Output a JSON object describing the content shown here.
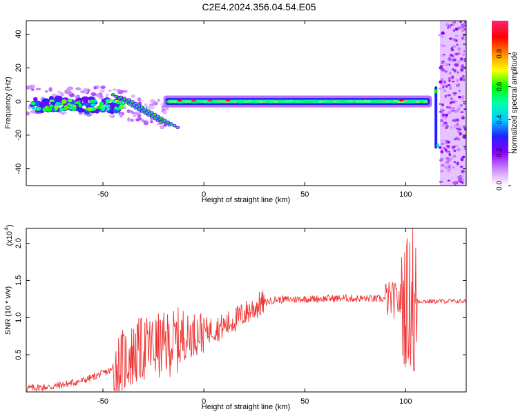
{
  "title": "C2E4.2024.356.04.54.E05",
  "chart_data": [
    {
      "type": "heatmap",
      "xlabel": "Height of straight line (km)",
      "ylabel": "Frequency (Hz)",
      "xlim": [
        -88,
        130
      ],
      "ylim": [
        -50,
        48
      ],
      "xticks": [
        -50,
        0,
        50,
        100
      ],
      "yticks": [
        -40,
        -20,
        0,
        20,
        40
      ],
      "colorbar": {
        "label": "Normalized spectral amplitude",
        "range": [
          0,
          1
        ],
        "ticks": [
          "0.0",
          "0.2",
          "0.4",
          "0.6",
          "0.8"
        ],
        "tick_values": [
          0,
          0.2,
          0.4,
          0.6,
          0.8
        ],
        "colors": [
          "#ffffff",
          "#cc88ff",
          "#8800ff",
          "#2222ff",
          "#00ccff",
          "#00ffaa",
          "#00ff00",
          "#ffff00",
          "#ff8800",
          "#ff0000",
          "#ff2277"
        ]
      },
      "features": {
        "main_band": {
          "x_start": -18,
          "x_end": 112,
          "frequency_hz": 0,
          "peak_amplitude": 1.0
        },
        "descending_streaks_start_x": -45,
        "descending_streaks_end_x": -20,
        "spike": {
          "x": 115,
          "frequency_range_hz": [
            -28,
            9
          ]
        },
        "noise_region_x": [
          117,
          130
        ]
      }
    },
    {
      "type": "line",
      "xlabel": "Height of straight line (km)",
      "ylabel": "SNR (10 * v/v)",
      "y_multiplier_label": "(x10",
      "y_multiplier_exp": "4",
      "xlim": [
        -88,
        130
      ],
      "ylim": [
        0,
        2.2
      ],
      "xticks": [
        -50,
        0,
        50,
        100
      ],
      "yticks": [
        0.5,
        1.0,
        1.5,
        2.0
      ],
      "ytick_labels": [
        "0.5",
        "1.0",
        "1.5",
        "2.0"
      ],
      "line_color": "#ee3333",
      "series": [
        {
          "trend_x": [
            -88,
            -75,
            -60,
            -45,
            -38,
            -30,
            -20,
            -12,
            -5,
            0,
            10,
            20,
            28,
            35,
            50,
            70,
            90,
            98,
            103,
            106,
            115,
            130
          ],
          "trend_y": [
            0.05,
            0.07,
            0.15,
            0.3,
            0.45,
            0.58,
            0.62,
            0.7,
            0.78,
            0.82,
            0.88,
            1.05,
            1.18,
            1.24,
            1.25,
            1.26,
            1.25,
            1.22,
            1.2,
            1.22,
            1.22,
            1.22
          ],
          "spike_max_y": 2.2,
          "spike_min_y": 0.28,
          "spike_x": 103.5
        }
      ]
    }
  ]
}
